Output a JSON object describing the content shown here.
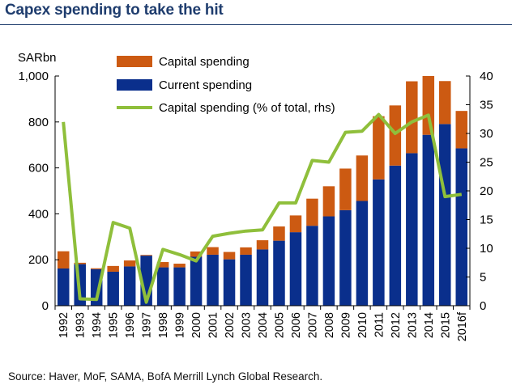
{
  "title": "Capex spending to take the hit",
  "source": "Source: Haver, MoF, SAMA, BofA Merrill Lynch Global Research.",
  "chart_data": {
    "type": "bar",
    "stacked": true,
    "left_axis_unit": "SARbn",
    "categories": [
      "1992",
      "1993",
      "1994",
      "1995",
      "1996",
      "1997",
      "1998",
      "1999",
      "2000",
      "2001",
      "2002",
      "2003",
      "2004",
      "2005",
      "2006",
      "2007",
      "2008",
      "2009",
      "2010",
      "2011",
      "2012",
      "2013",
      "2014",
      "2015",
      "2016f"
    ],
    "series": [
      {
        "name": "Current spending",
        "color": "#0a2f8c",
        "values": [
          162,
          181,
          159,
          148,
          171,
          218,
          167,
          167,
          213,
          222,
          202,
          222,
          245,
          283,
          320,
          348,
          389,
          416,
          456,
          550,
          610,
          664,
          744,
          791,
          685
        ]
      },
      {
        "name": "Capital spending",
        "color": "#cc5a12",
        "values": [
          75,
          6,
          4,
          25,
          26,
          3,
          23,
          16,
          23,
          33,
          32,
          32,
          40,
          62,
          73,
          118,
          131,
          181,
          198,
          275,
          262,
          313,
          256,
          187,
          163
        ]
      },
      {
        "name": "Capital spending (% of total, rhs)",
        "color": "#8fbf3b",
        "axis": "right",
        "type": "line",
        "values": [
          32,
          1.2,
          1.1,
          14.5,
          13.5,
          0.6,
          9.8,
          8.9,
          7.8,
          12.1,
          12.6,
          13,
          13.2,
          17.9,
          17.9,
          25.3,
          25,
          30.2,
          30.4,
          33.3,
          30,
          32,
          33.2,
          19,
          19.4
        ]
      }
    ],
    "left_axis": {
      "min": 0,
      "max": 1000,
      "ticks": [
        "0",
        "200",
        "400",
        "600",
        "800",
        "1,000"
      ]
    },
    "right_axis": {
      "min": 0,
      "max": 40,
      "ticks": [
        "0",
        "5",
        "10",
        "15",
        "20",
        "25",
        "30",
        "35",
        "40"
      ]
    },
    "legend": [
      "Capital spending",
      "Current spending",
      "Capital spending (% of total, rhs)"
    ],
    "legend_position": "top-left",
    "grid": false
  }
}
